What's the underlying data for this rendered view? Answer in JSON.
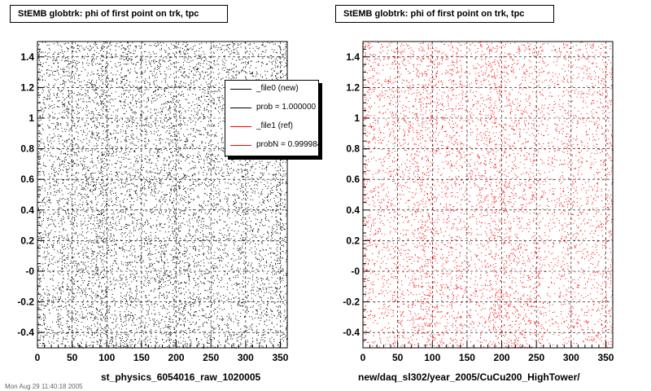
{
  "chart_data": [
    {
      "type": "scatter",
      "title": "StEMB globtrk: phi of first point on trk, tpc",
      "xlabel": "st_physics_6054016_raw_1020005",
      "ylabel": "",
      "xlim": [
        0,
        360
      ],
      "ylim": [
        -0.5,
        1.5
      ],
      "x_ticks": [
        "0",
        "50",
        "100",
        "150",
        "200",
        "250",
        "300",
        "350"
      ],
      "y_ticks": [
        "-0.4",
        "-0.2",
        "-0",
        "0.2",
        "0.4",
        "0.6",
        "0.8",
        "1",
        "1.2",
        "1.4"
      ],
      "grid": true,
      "color": "#000000",
      "point_count": 9000,
      "density_profile": [
        {
          "x": 0,
          "density": 0.9
        },
        {
          "x": 20,
          "density": 0.55
        },
        {
          "x": 45,
          "density": 0.8
        },
        {
          "x": 70,
          "density": 0.7
        },
        {
          "x": 95,
          "density": 1.0
        },
        {
          "x": 110,
          "density": 0.65
        },
        {
          "x": 130,
          "density": 0.75
        },
        {
          "x": 150,
          "density": 0.55
        },
        {
          "x": 175,
          "density": 0.7
        },
        {
          "x": 200,
          "density": 0.85
        },
        {
          "x": 225,
          "density": 0.6
        },
        {
          "x": 245,
          "density": 0.7
        },
        {
          "x": 270,
          "density": 0.45
        },
        {
          "x": 295,
          "density": 0.7
        },
        {
          "x": 320,
          "density": 0.55
        },
        {
          "x": 345,
          "density": 0.75
        },
        {
          "x": 360,
          "density": 0.6
        }
      ],
      "legend": {
        "placement": "top-right",
        "entries": [
          {
            "label": "_file0 (new)",
            "color": "#000000"
          },
          {
            "label": "prob = 1.000000",
            "color": "#000000"
          },
          {
            "label": "_file1 (ref)",
            "color": "#ff0000"
          },
          {
            "label": "probN = 0.999984",
            "color": "#ff0000"
          }
        ]
      }
    },
    {
      "type": "scatter",
      "title": "StEMB globtrk: phi of first point on trk, tpc",
      "xlabel": "new/daq_sl302/year_2005/CuCu200_HighTower/",
      "ylabel": "",
      "xlim": [
        0,
        360
      ],
      "ylim": [
        -0.5,
        1.5
      ],
      "x_ticks": [
        "0",
        "50",
        "100",
        "150",
        "200",
        "250",
        "300",
        "350"
      ],
      "y_ticks": [
        "-0.4",
        "-0.2",
        "-0",
        "0.2",
        "0.4",
        "0.6",
        "0.8",
        "1",
        "1.2",
        "1.4"
      ],
      "grid": true,
      "color": "#ff0000",
      "point_count": 6500,
      "density_profile": [
        {
          "x": 0,
          "density": 0.8
        },
        {
          "x": 20,
          "density": 0.5
        },
        {
          "x": 45,
          "density": 0.75
        },
        {
          "x": 70,
          "density": 0.6
        },
        {
          "x": 95,
          "density": 0.95
        },
        {
          "x": 110,
          "density": 0.6
        },
        {
          "x": 130,
          "density": 0.7
        },
        {
          "x": 150,
          "density": 0.5
        },
        {
          "x": 175,
          "density": 0.65
        },
        {
          "x": 200,
          "density": 0.85
        },
        {
          "x": 225,
          "density": 0.55
        },
        {
          "x": 245,
          "density": 0.7
        },
        {
          "x": 270,
          "density": 0.4
        },
        {
          "x": 295,
          "density": 0.6
        },
        {
          "x": 320,
          "density": 0.45
        },
        {
          "x": 345,
          "density": 0.7
        },
        {
          "x": 360,
          "density": 0.55
        }
      ]
    }
  ],
  "footer": "Mon Aug 29 11:40:18 2005"
}
